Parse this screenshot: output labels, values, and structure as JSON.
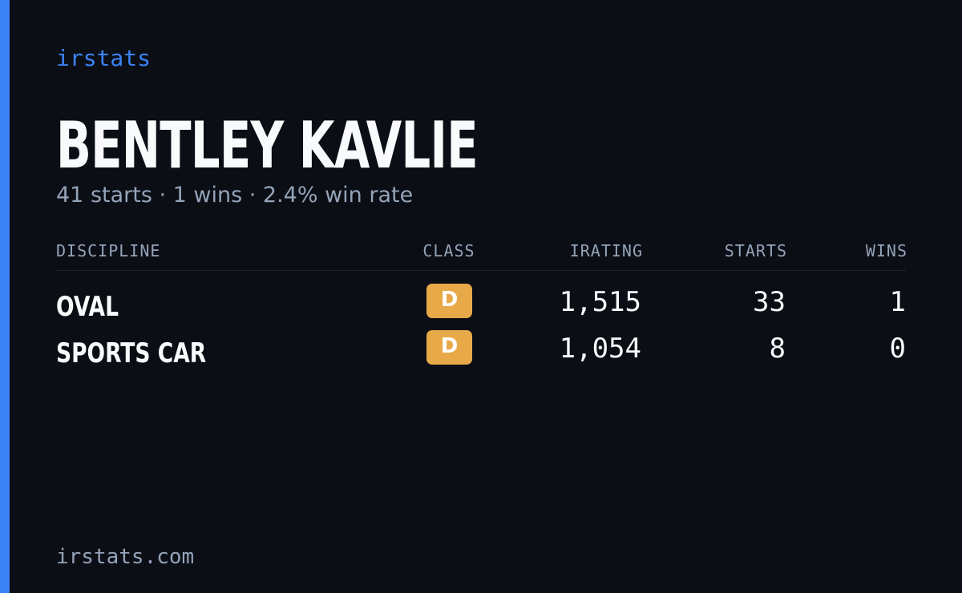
{
  "brand": "irstats",
  "driver": {
    "name": "BENTLEY KAVLIE",
    "summary": "41 starts · 1 wins · 2.4% win rate"
  },
  "table": {
    "headers": [
      "DISCIPLINE",
      "CLASS",
      "IRATING",
      "STARTS",
      "WINS"
    ],
    "rows": [
      [
        "OVAL",
        "D",
        "1,515",
        "33",
        "1"
      ],
      [
        "SPORTS CAR",
        "D",
        "1,054",
        "8",
        "0"
      ]
    ]
  },
  "footer": "irstats.com"
}
